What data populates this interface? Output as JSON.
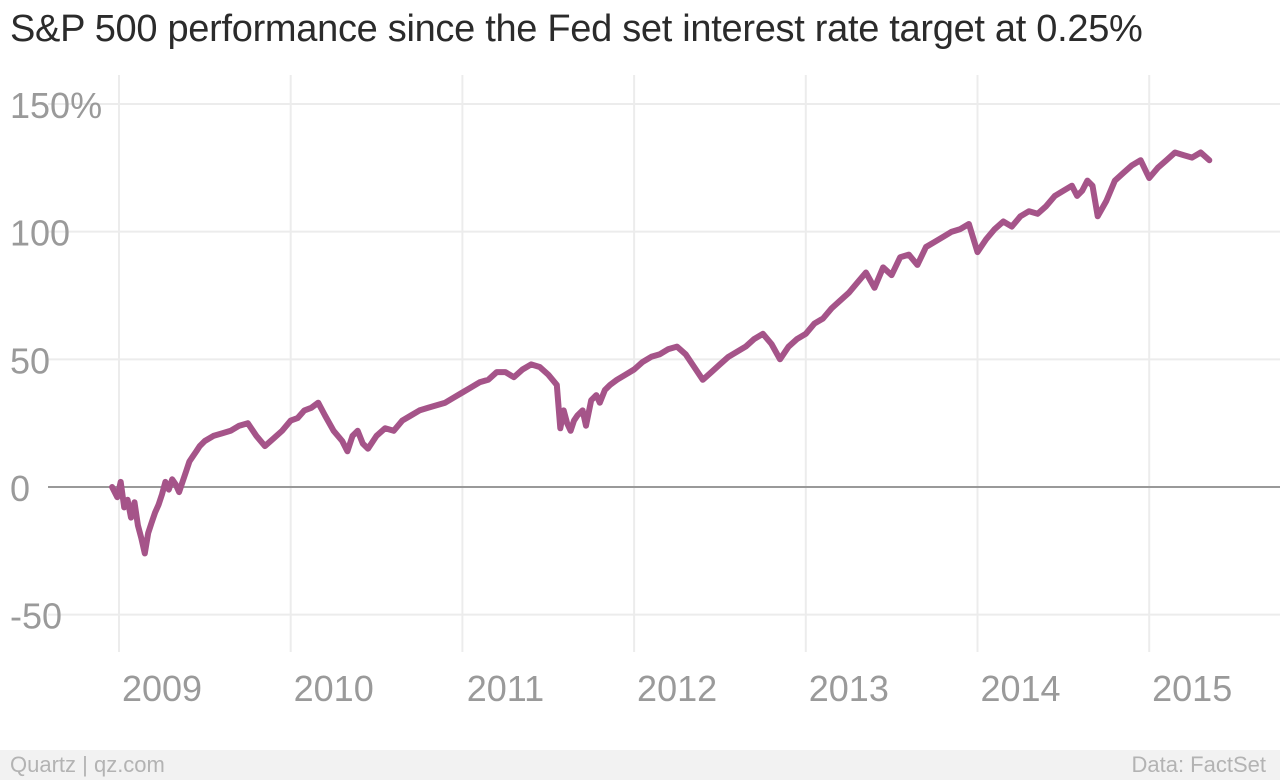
{
  "title": "S&P 500 performance since the Fed set interest rate target at 0.25%",
  "footer": {
    "source_left": "Quartz | qz.com",
    "source_right": "Data: FactSet"
  },
  "colors": {
    "line": "#a55489",
    "grid": "#ececec",
    "zero_line": "#999999",
    "tick_text": "#9a9a9a",
    "title_text": "#2b2b2b"
  },
  "chart_data": {
    "type": "line",
    "title": "S&P 500 performance since the Fed set interest rate target at 0.25%",
    "xlabel": "",
    "ylabel": "",
    "ylim": [
      -65,
      160
    ],
    "xlim": [
      2008.95,
      2015.62
    ],
    "yticks": [
      150,
      100,
      50,
      0,
      -50
    ],
    "ytick_labels": [
      "150%",
      "100",
      "50",
      "0",
      "-50"
    ],
    "xticks": [
      2009,
      2010,
      2011,
      2012,
      2013,
      2014,
      2015
    ],
    "xtick_labels": [
      "2009",
      "2010",
      "2011",
      "2012",
      "2013",
      "2014",
      "2015"
    ],
    "grid": true,
    "series": [
      {
        "x": [
          2008.96,
          2008.99,
          2009.01,
          2009.03,
          2009.05,
          2009.07,
          2009.09,
          2009.11,
          2009.13,
          2009.15,
          2009.17,
          2009.19,
          2009.21,
          2009.23,
          2009.25,
          2009.27,
          2009.29,
          2009.31,
          2009.33,
          2009.35,
          2009.37,
          2009.39,
          2009.41,
          2009.43,
          2009.45,
          2009.47,
          2009.5,
          2009.55,
          2009.6,
          2009.65,
          2009.7,
          2009.75,
          2009.8,
          2009.85,
          2009.9,
          2009.95,
          2010.0,
          2010.04,
          2010.08,
          2010.12,
          2010.16,
          2010.2,
          2010.25,
          2010.3,
          2010.33,
          2010.36,
          2010.39,
          2010.42,
          2010.45,
          2010.5,
          2010.55,
          2010.6,
          2010.65,
          2010.7,
          2010.75,
          2010.8,
          2010.85,
          2010.9,
          2010.95,
          2011.0,
          2011.05,
          2011.1,
          2011.15,
          2011.2,
          2011.25,
          2011.3,
          2011.35,
          2011.4,
          2011.45,
          2011.5,
          2011.55,
          2011.57,
          2011.59,
          2011.61,
          2011.63,
          2011.65,
          2011.67,
          2011.7,
          2011.72,
          2011.75,
          2011.78,
          2011.8,
          2011.83,
          2011.86,
          2011.9,
          2011.95,
          2012.0,
          2012.05,
          2012.1,
          2012.15,
          2012.2,
          2012.25,
          2012.3,
          2012.35,
          2012.4,
          2012.45,
          2012.5,
          2012.55,
          2012.6,
          2012.65,
          2012.7,
          2012.75,
          2012.8,
          2012.85,
          2012.9,
          2012.95,
          2013.0,
          2013.05,
          2013.1,
          2013.15,
          2013.2,
          2013.25,
          2013.3,
          2013.35,
          2013.4,
          2013.45,
          2013.5,
          2013.55,
          2013.6,
          2013.65,
          2013.7,
          2013.75,
          2013.8,
          2013.85,
          2013.9,
          2013.95,
          2014.0,
          2014.05,
          2014.1,
          2014.15,
          2014.2,
          2014.25,
          2014.3,
          2014.35,
          2014.4,
          2014.45,
          2014.5,
          2014.55,
          2014.58,
          2014.61,
          2014.64,
          2014.67,
          2014.7,
          2014.75,
          2014.8,
          2014.85,
          2014.9,
          2014.95,
          2015.0,
          2015.05,
          2015.1,
          2015.15,
          2015.2,
          2015.25,
          2015.3,
          2015.35
        ],
        "values": [
          0,
          -4,
          2,
          -8,
          -5,
          -12,
          -6,
          -15,
          -20,
          -26,
          -18,
          -14,
          -10,
          -7,
          -3,
          2,
          -1,
          3,
          1,
          -2,
          2,
          6,
          10,
          12,
          14,
          16,
          18,
          20,
          21,
          22,
          24,
          25,
          20,
          16,
          19,
          22,
          26,
          27,
          30,
          31,
          33,
          28,
          22,
          18,
          14,
          20,
          22,
          17,
          15,
          20,
          23,
          22,
          26,
          28,
          30,
          31,
          32,
          33,
          35,
          37,
          39,
          41,
          42,
          45,
          45,
          43,
          46,
          48,
          47,
          44,
          40,
          23,
          30,
          25,
          22,
          26,
          28,
          30,
          24,
          34,
          36,
          33,
          38,
          40,
          42,
          44,
          46,
          49,
          51,
          52,
          54,
          55,
          52,
          47,
          42,
          45,
          48,
          51,
          53,
          55,
          58,
          60,
          56,
          50,
          55,
          58,
          60,
          64,
          66,
          70,
          73,
          76,
          80,
          84,
          78,
          86,
          83,
          90,
          91,
          87,
          94,
          96,
          98,
          100,
          101,
          103,
          92,
          97,
          101,
          104,
          102,
          106,
          108,
          107,
          110,
          114,
          116,
          118,
          114,
          116,
          120,
          118,
          106,
          112,
          120,
          123,
          126,
          128,
          121,
          125,
          128,
          131,
          130,
          129,
          131,
          128
        ]
      }
    ]
  }
}
